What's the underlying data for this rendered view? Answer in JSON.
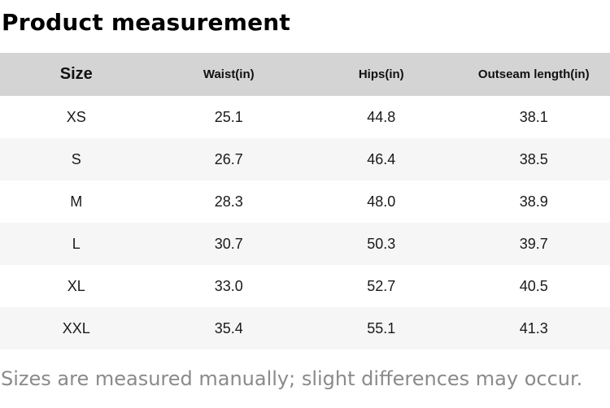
{
  "chart_data": {
    "type": "table",
    "title": "Product measurement",
    "columns": [
      "Size",
      "Waist(in)",
      "Hips(in)",
      "Outseam length(in)"
    ],
    "column_keys": [
      "size",
      "waist",
      "hips",
      "outseam"
    ],
    "rows": [
      [
        "XS",
        "25.1",
        "44.8",
        "38.1"
      ],
      [
        "S",
        "26.7",
        "46.4",
        "38.5"
      ],
      [
        "M",
        "28.3",
        "48.0",
        "38.9"
      ],
      [
        "L",
        "30.7",
        "50.3",
        "39.7"
      ],
      [
        "XL",
        "33.0",
        "52.7",
        "40.5"
      ],
      [
        "XXL",
        "35.4",
        "55.1",
        "41.3"
      ]
    ],
    "note": "Sizes are measured manually; slight differences may occur."
  },
  "colors": {
    "header_bg": "#d4d4d4",
    "row_alt_bg": "#f6f6f6",
    "text": "#111111",
    "note_text": "#8a8a8a"
  }
}
